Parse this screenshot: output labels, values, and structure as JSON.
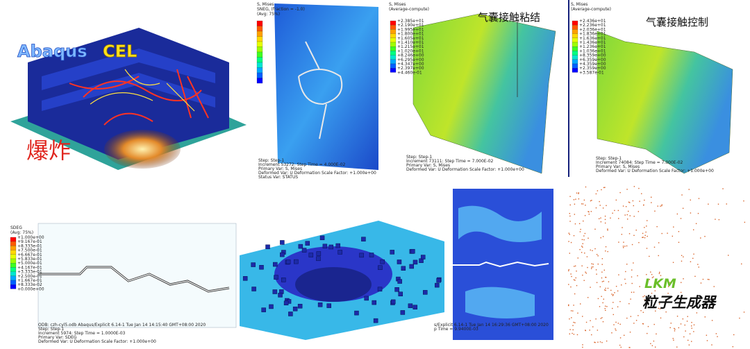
{
  "cel": {
    "title_a": "Abaqus",
    "title_b": "CEL",
    "caption": "爆炸"
  },
  "plate": {
    "legend_title": "S, Mises",
    "legend_subtitle": "SNEG, (fraction = -1.0)",
    "legend_avg": "(Avg: 75%)",
    "footer": [
      "Step: Step-1",
      "Increment    53272: Step Time =  4.000E-02",
      "Primary Var: S, Mises",
      "Deformed Var: U   Deformation Scale Factor: +1.000e+00",
      "Status Var: STATUS"
    ]
  },
  "airbag_bond": {
    "legend_title": "S, Mises",
    "legend_subtitle": "(Average-compute)",
    "legend_values": [
      "+2.385e+01",
      "+2.190e+01",
      "+1.995e+01",
      "+1.800e+01",
      "+1.605e+01",
      "+1.410e+01",
      "+1.215e+01",
      "+1.020e+01",
      "+8.246e+00",
      "+6.295e+00",
      "+4.347e+00",
      "+2.397e+00",
      "+4.460e-01"
    ],
    "annotation": "气囊接触粘结",
    "footer": [
      "Step: Step-1",
      "Increment    73111: Step Time =   7.000E-02",
      "Primary Var: S, Mises",
      "Deformed Var: U   Deformation Scale Factor: +1.000e+00"
    ]
  },
  "airbag_control": {
    "legend_title": "S, Mises",
    "legend_subtitle": "(Average-compute)",
    "legend_values": [
      "+2.436e+01",
      "+2.236e+01",
      "+2.036e+01",
      "+1.836e+01",
      "+1.636e+01",
      "+1.436e+01",
      "+1.236e+01",
      "+1.036e+01",
      "+8.359e+00",
      "+6.359e+00",
      "+4.359e+00",
      "+2.359e+00",
      "+3.587e-01"
    ],
    "annotation": "气囊接触控制",
    "footer": [
      "Step: Step-1",
      "Increment    74084: Step Time =   7.000E-02",
      "Primary Var: S, Mises",
      "Deformed Var: U   Deformation Scale Factor: +1.000e+00"
    ]
  },
  "crack": {
    "legend_title": "SDEG",
    "legend_subtitle": "(Avg: 75%)",
    "legend_values": [
      "+1.000e+00",
      "+9.167e-01",
      "+8.333e-01",
      "+7.500e-01",
      "+6.667e-01",
      "+5.833e-01",
      "+5.000e-01",
      "+4.167e-01",
      "+3.333e-01",
      "+2.500e-01",
      "+1.667e-01",
      "+8.333e-02",
      "+0.000e+00"
    ],
    "footer": [
      "ODB: czh-cyl5.odb   Abaqus/Explicit 6.14-1   Tue Jan 14 14:15:40 GMT+08:00 2020",
      "Step: Step-1",
      "Increment    5974: Step Time =  1.0000E-03",
      "Primary Var: SDEG",
      "Deformed Var: U   Deformation Scale Factor: +1.000e+00"
    ]
  },
  "crack_strip": {
    "footer": [
      "s/Explicit 6.14-1   Tue Jan 14 16:29:36 GMT+08:00 2020",
      "p Time =  9.9400E-03"
    ]
  },
  "particles": {
    "title": "LKM",
    "caption": "粒子生成器"
  }
}
